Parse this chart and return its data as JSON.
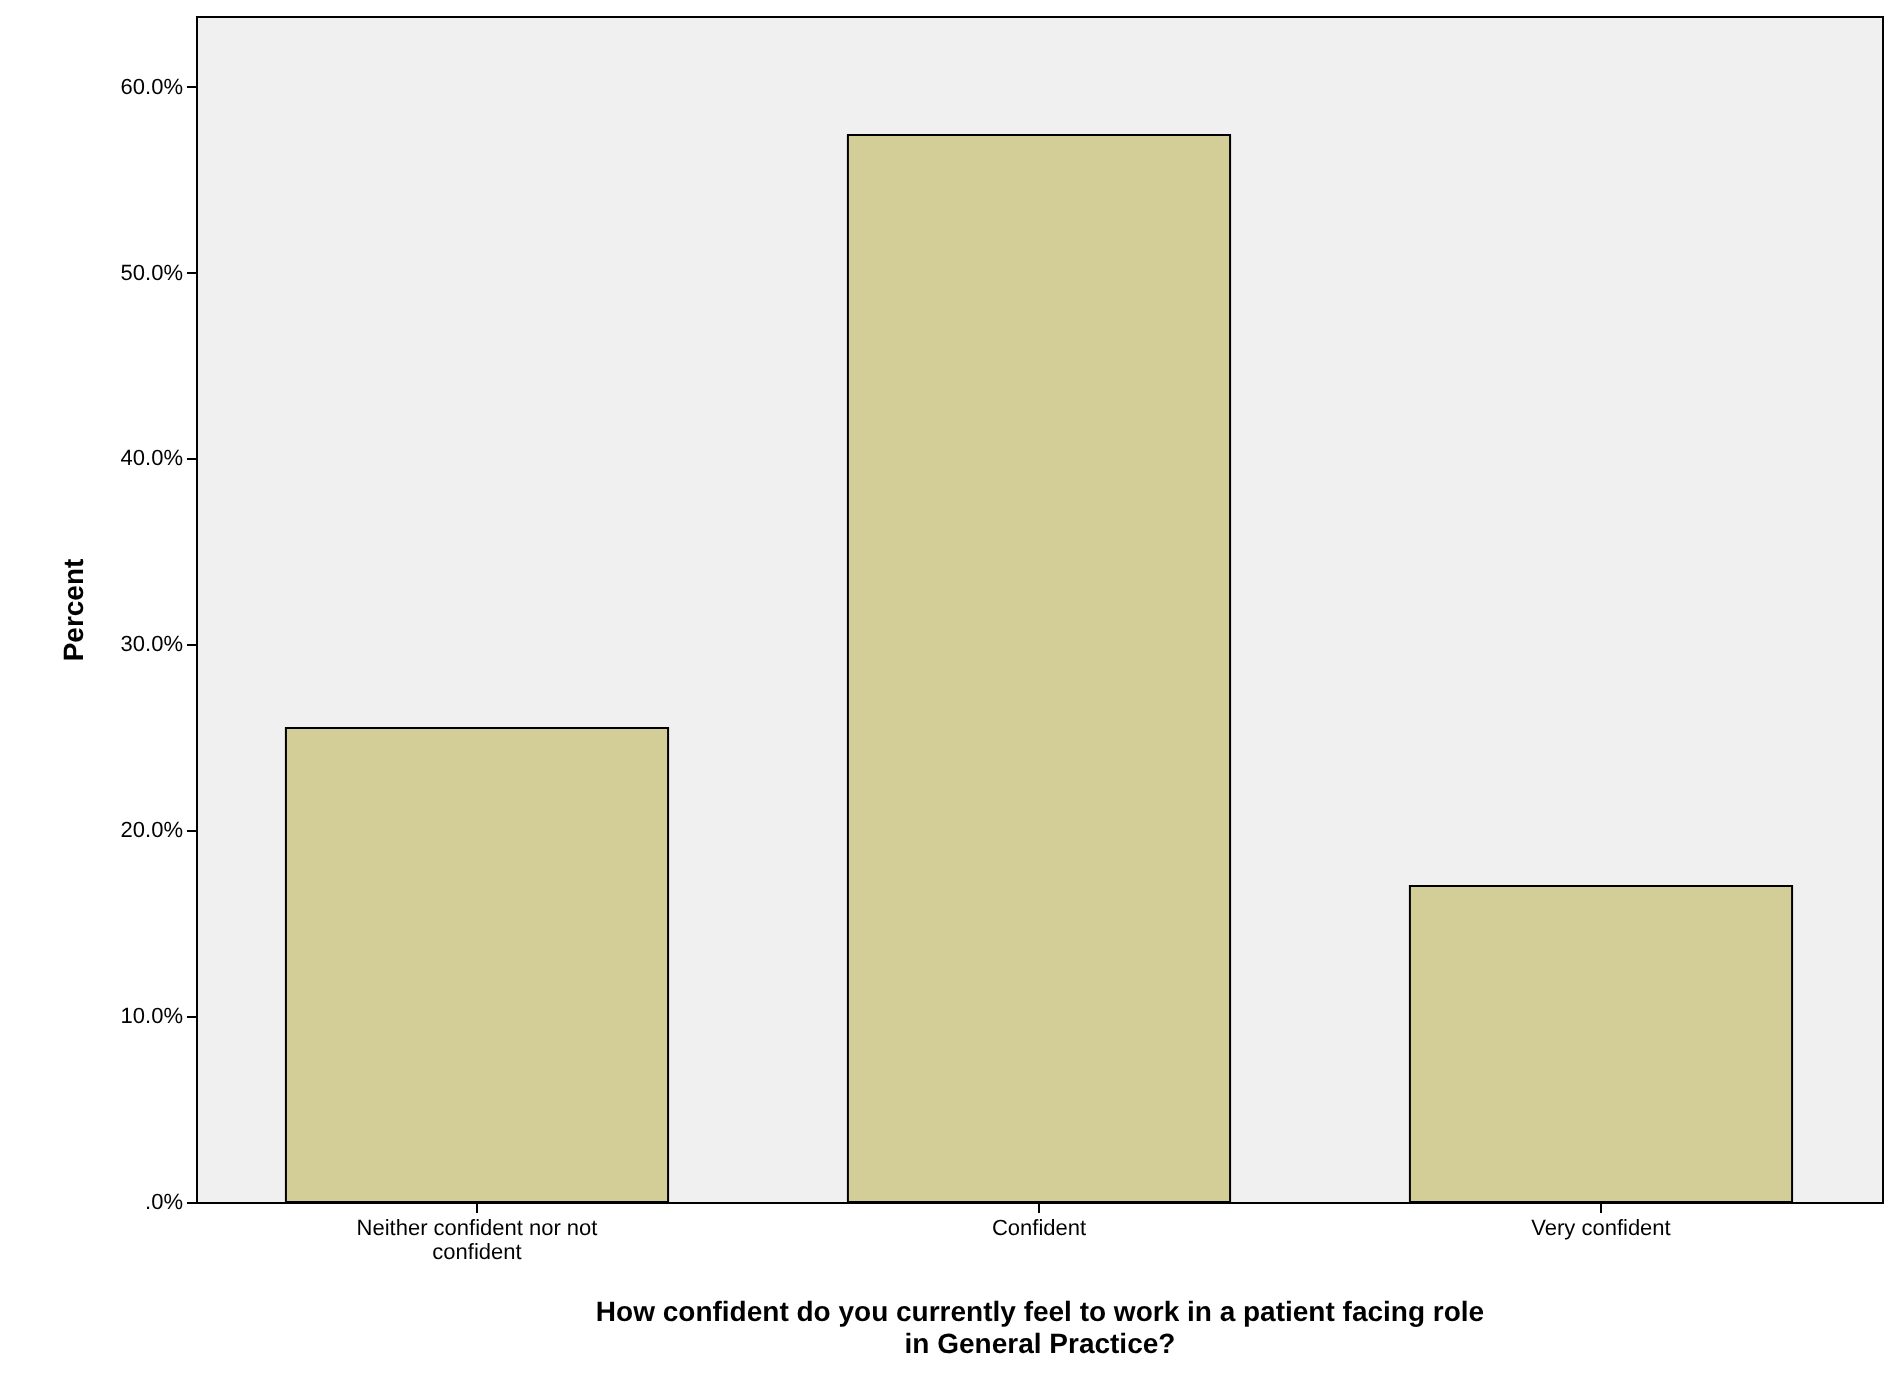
{
  "chart_data": {
    "type": "bar",
    "xlabel": "How confident do you currently feel to work in a patient facing role in General Practice?",
    "ylabel": "Percent",
    "categories": [
      "Neither confident nor not confident",
      "Confident",
      "Very confident"
    ],
    "values": [
      25.5,
      57.4,
      17.0
    ],
    "color": "#d3ce97",
    "ylim": [
      0,
      63.8
    ],
    "yticks": [
      {
        "value": 0,
        "label": ".0%"
      },
      {
        "value": 10,
        "label": "10.0%"
      },
      {
        "value": 20,
        "label": "20.0%"
      },
      {
        "value": 30,
        "label": "30.0%"
      },
      {
        "value": 40,
        "label": "40.0%"
      },
      {
        "value": 50,
        "label": "50.0%"
      },
      {
        "value": 60,
        "label": "60.0%"
      }
    ],
    "grid": false
  }
}
